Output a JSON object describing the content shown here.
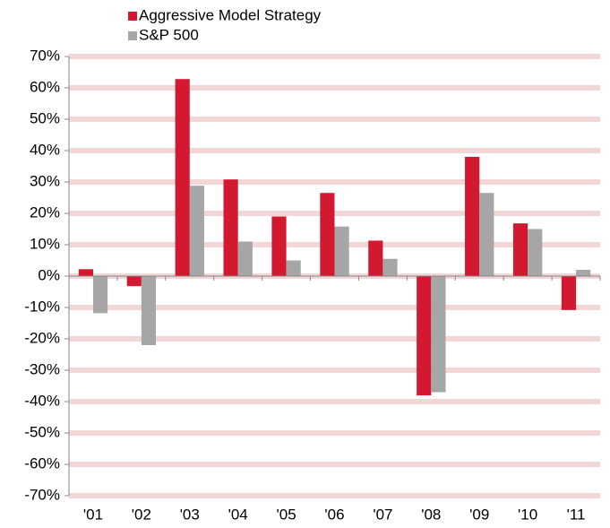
{
  "chart_data": {
    "type": "bar",
    "categories": [
      "'01",
      "'02",
      "'03",
      "'04",
      "'05",
      "'06",
      "'07",
      "'08",
      "'09",
      "'10",
      "'11"
    ],
    "series": [
      {
        "name": "Aggressive Model Strategy",
        "color": "#d2192f",
        "values": [
          2.2,
          -3.2,
          62.8,
          30.8,
          19,
          26.5,
          11.3,
          -38,
          38,
          16.8,
          -10.8
        ]
      },
      {
        "name": "S&P 500",
        "color": "#a6a6a6",
        "values": [
          -11.8,
          -22,
          28.8,
          11,
          5,
          15.8,
          5.5,
          -37,
          26.5,
          15,
          2
        ]
      }
    ],
    "ylim": [
      -70,
      70
    ],
    "yticks": [
      {
        "value": -70,
        "label": "-70%"
      },
      {
        "value": -60,
        "label": "-60%"
      },
      {
        "value": -50,
        "label": "-50%"
      },
      {
        "value": -40,
        "label": "-40%"
      },
      {
        "value": -30,
        "label": "-30%"
      },
      {
        "value": -20,
        "label": "-20%"
      },
      {
        "value": -10,
        "label": "-10%"
      },
      {
        "value": 0,
        "label": "0%"
      },
      {
        "value": 10,
        "label": "10%"
      },
      {
        "value": 20,
        "label": "20%"
      },
      {
        "value": 30,
        "label": "30%"
      },
      {
        "value": 40,
        "label": "40%"
      },
      {
        "value": 50,
        "label": "50%"
      },
      {
        "value": 60,
        "label": "60%"
      },
      {
        "value": 70,
        "label": "70%"
      }
    ],
    "grid": true,
    "legend": "top"
  }
}
